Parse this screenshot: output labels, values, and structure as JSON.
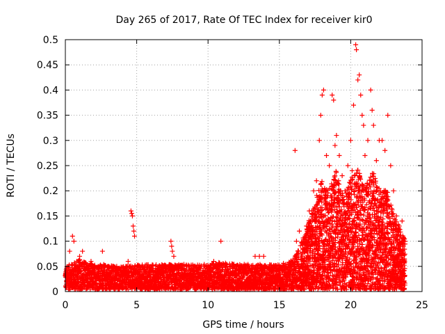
{
  "chart_data": {
    "type": "scatter",
    "title": "Day 265 of 2017, Rate Of TEC Index for receiver kir0",
    "xlabel": "GPS time / hours",
    "ylabel": "ROTI / TECUs",
    "xlim": [
      0,
      25
    ],
    "ylim": [
      0,
      0.5
    ],
    "xticks": [
      0,
      5,
      10,
      15,
      20,
      25
    ],
    "xtick_labels": [
      "0",
      "5",
      "10",
      "15",
      "20",
      "25"
    ],
    "yticks": [
      0,
      0.05,
      0.1,
      0.15,
      0.2,
      0.25,
      0.3,
      0.35,
      0.4,
      0.45,
      0.5
    ],
    "ytick_labels": [
      "0",
      "0.05",
      "0.1",
      "0.15",
      "0.2",
      "0.25",
      "0.3",
      "0.35",
      "0.4",
      "0.45",
      "0.5"
    ],
    "grid": true,
    "marker": "+",
    "series": [
      {
        "name": "ROTI",
        "color": "#ff0000",
        "points": [
          [
            0.1,
            0.03
          ],
          [
            0.2,
            0.05
          ],
          [
            0.3,
            0.08
          ],
          [
            0.5,
            0.11
          ],
          [
            0.6,
            0.1
          ],
          [
            0.8,
            0.06
          ],
          [
            1.0,
            0.07
          ],
          [
            1.2,
            0.08
          ],
          [
            1.5,
            0.05
          ],
          [
            1.8,
            0.06
          ],
          [
            2.0,
            0.04
          ],
          [
            2.3,
            0.05
          ],
          [
            2.6,
            0.08
          ],
          [
            3.0,
            0.05
          ],
          [
            3.3,
            0.04
          ],
          [
            3.6,
            0.05
          ],
          [
            4.0,
            0.04
          ],
          [
            4.4,
            0.06
          ],
          [
            4.6,
            0.16
          ],
          [
            4.65,
            0.155
          ],
          [
            4.7,
            0.15
          ],
          [
            4.75,
            0.13
          ],
          [
            4.8,
            0.12
          ],
          [
            4.85,
            0.11
          ],
          [
            5.2,
            0.05
          ],
          [
            5.6,
            0.04
          ],
          [
            6.0,
            0.05
          ],
          [
            6.5,
            0.04
          ],
          [
            7.0,
            0.05
          ],
          [
            7.4,
            0.1
          ],
          [
            7.45,
            0.09
          ],
          [
            7.5,
            0.08
          ],
          [
            7.6,
            0.07
          ],
          [
            8.0,
            0.05
          ],
          [
            8.5,
            0.05
          ],
          [
            9.0,
            0.04
          ],
          [
            9.5,
            0.05
          ],
          [
            10.0,
            0.05
          ],
          [
            10.4,
            0.06
          ],
          [
            10.9,
            0.1
          ],
          [
            11.2,
            0.05
          ],
          [
            11.8,
            0.05
          ],
          [
            12.3,
            0.04
          ],
          [
            12.8,
            0.05
          ],
          [
            13.3,
            0.07
          ],
          [
            13.6,
            0.07
          ],
          [
            13.9,
            0.07
          ],
          [
            14.3,
            0.05
          ],
          [
            14.8,
            0.04
          ],
          [
            15.3,
            0.05
          ],
          [
            15.8,
            0.06
          ],
          [
            16.1,
            0.28
          ],
          [
            16.2,
            0.1
          ],
          [
            16.4,
            0.12
          ],
          [
            16.6,
            0.07
          ],
          [
            16.9,
            0.13
          ],
          [
            17.1,
            0.16
          ],
          [
            17.4,
            0.2
          ],
          [
            17.6,
            0.22
          ],
          [
            17.8,
            0.3
          ],
          [
            17.9,
            0.35
          ],
          [
            18.0,
            0.39
          ],
          [
            18.1,
            0.4
          ],
          [
            18.3,
            0.27
          ],
          [
            18.5,
            0.25
          ],
          [
            18.7,
            0.39
          ],
          [
            18.8,
            0.38
          ],
          [
            18.9,
            0.29
          ],
          [
            19.0,
            0.31
          ],
          [
            19.2,
            0.27
          ],
          [
            19.4,
            0.23
          ],
          [
            19.6,
            0.2
          ],
          [
            19.8,
            0.25
          ],
          [
            20.0,
            0.3
          ],
          [
            20.1,
            0.24
          ],
          [
            20.2,
            0.37
          ],
          [
            20.35,
            0.49
          ],
          [
            20.4,
            0.48
          ],
          [
            20.5,
            0.42
          ],
          [
            20.6,
            0.43
          ],
          [
            20.7,
            0.39
          ],
          [
            20.8,
            0.35
          ],
          [
            20.9,
            0.33
          ],
          [
            21.0,
            0.27
          ],
          [
            21.2,
            0.3
          ],
          [
            21.4,
            0.4
          ],
          [
            21.5,
            0.36
          ],
          [
            21.6,
            0.33
          ],
          [
            21.8,
            0.26
          ],
          [
            22.0,
            0.3
          ],
          [
            22.2,
            0.3
          ],
          [
            22.4,
            0.28
          ],
          [
            22.6,
            0.35
          ],
          [
            22.8,
            0.25
          ],
          [
            23.0,
            0.2
          ],
          [
            23.2,
            0.15
          ],
          [
            23.4,
            0.13
          ],
          [
            23.6,
            0.14
          ],
          [
            23.7,
            0.1
          ]
        ],
        "envelope": [
          [
            0.0,
            0.045
          ],
          [
            1.0,
            0.06
          ],
          [
            2.0,
            0.05
          ],
          [
            3.0,
            0.05
          ],
          [
            4.0,
            0.045
          ],
          [
            5.0,
            0.05
          ],
          [
            6.0,
            0.05
          ],
          [
            7.0,
            0.05
          ],
          [
            8.0,
            0.05
          ],
          [
            9.0,
            0.05
          ],
          [
            10.0,
            0.05
          ],
          [
            11.0,
            0.055
          ],
          [
            12.0,
            0.05
          ],
          [
            13.0,
            0.05
          ],
          [
            14.0,
            0.05
          ],
          [
            15.0,
            0.05
          ],
          [
            16.0,
            0.06
          ],
          [
            16.5,
            0.09
          ],
          [
            17.0,
            0.13
          ],
          [
            17.5,
            0.18
          ],
          [
            18.0,
            0.22
          ],
          [
            18.5,
            0.2
          ],
          [
            19.0,
            0.24
          ],
          [
            19.5,
            0.18
          ],
          [
            20.0,
            0.22
          ],
          [
            20.5,
            0.24
          ],
          [
            21.0,
            0.2
          ],
          [
            21.5,
            0.24
          ],
          [
            22.0,
            0.2
          ],
          [
            22.5,
            0.2
          ],
          [
            23.0,
            0.15
          ],
          [
            23.5,
            0.12
          ],
          [
            23.8,
            0.1
          ]
        ]
      }
    ]
  }
}
